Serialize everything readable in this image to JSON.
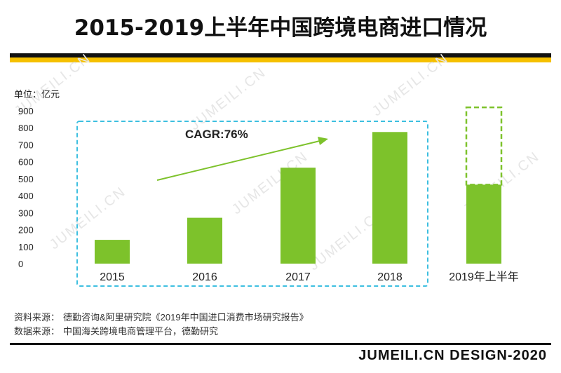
{
  "title": "2015-2019上半年中国跨境电商进口情况",
  "unit_label": "单位：亿元",
  "chart_data": {
    "type": "bar",
    "categories": [
      "2015",
      "2016",
      "2017",
      "2018",
      "2019年上半年"
    ],
    "values": [
      140,
      270,
      565,
      775,
      465
    ],
    "projection": {
      "category": "2019年上半年",
      "value": 920,
      "style": "dashed-outline"
    },
    "title": "2015-2019上半年中国跨境电商进口情况",
    "ylabel": "单位：亿元",
    "yticks": [
      0,
      100,
      200,
      300,
      400,
      500,
      600,
      700,
      800,
      900
    ],
    "ylim": [
      0,
      900
    ],
    "annotation": "CAGR:76%",
    "grid": false
  },
  "sources": [
    {
      "label": "资料来源：",
      "text": "德勤咨询&阿里研究院《2019年中国进口消费市场研究报告》"
    },
    {
      "label": "数据来源：",
      "text": "中国海关跨境电商管理平台，德勤研究"
    }
  ],
  "footer": "JUMEILI.CN DESIGN-2020",
  "watermark": "JUMEILI.CN",
  "colors": {
    "bar": "#7dc22b",
    "highlight_box": "#3dbfe0",
    "accent": "#f5c000",
    "arrow": "#7dc22b"
  }
}
